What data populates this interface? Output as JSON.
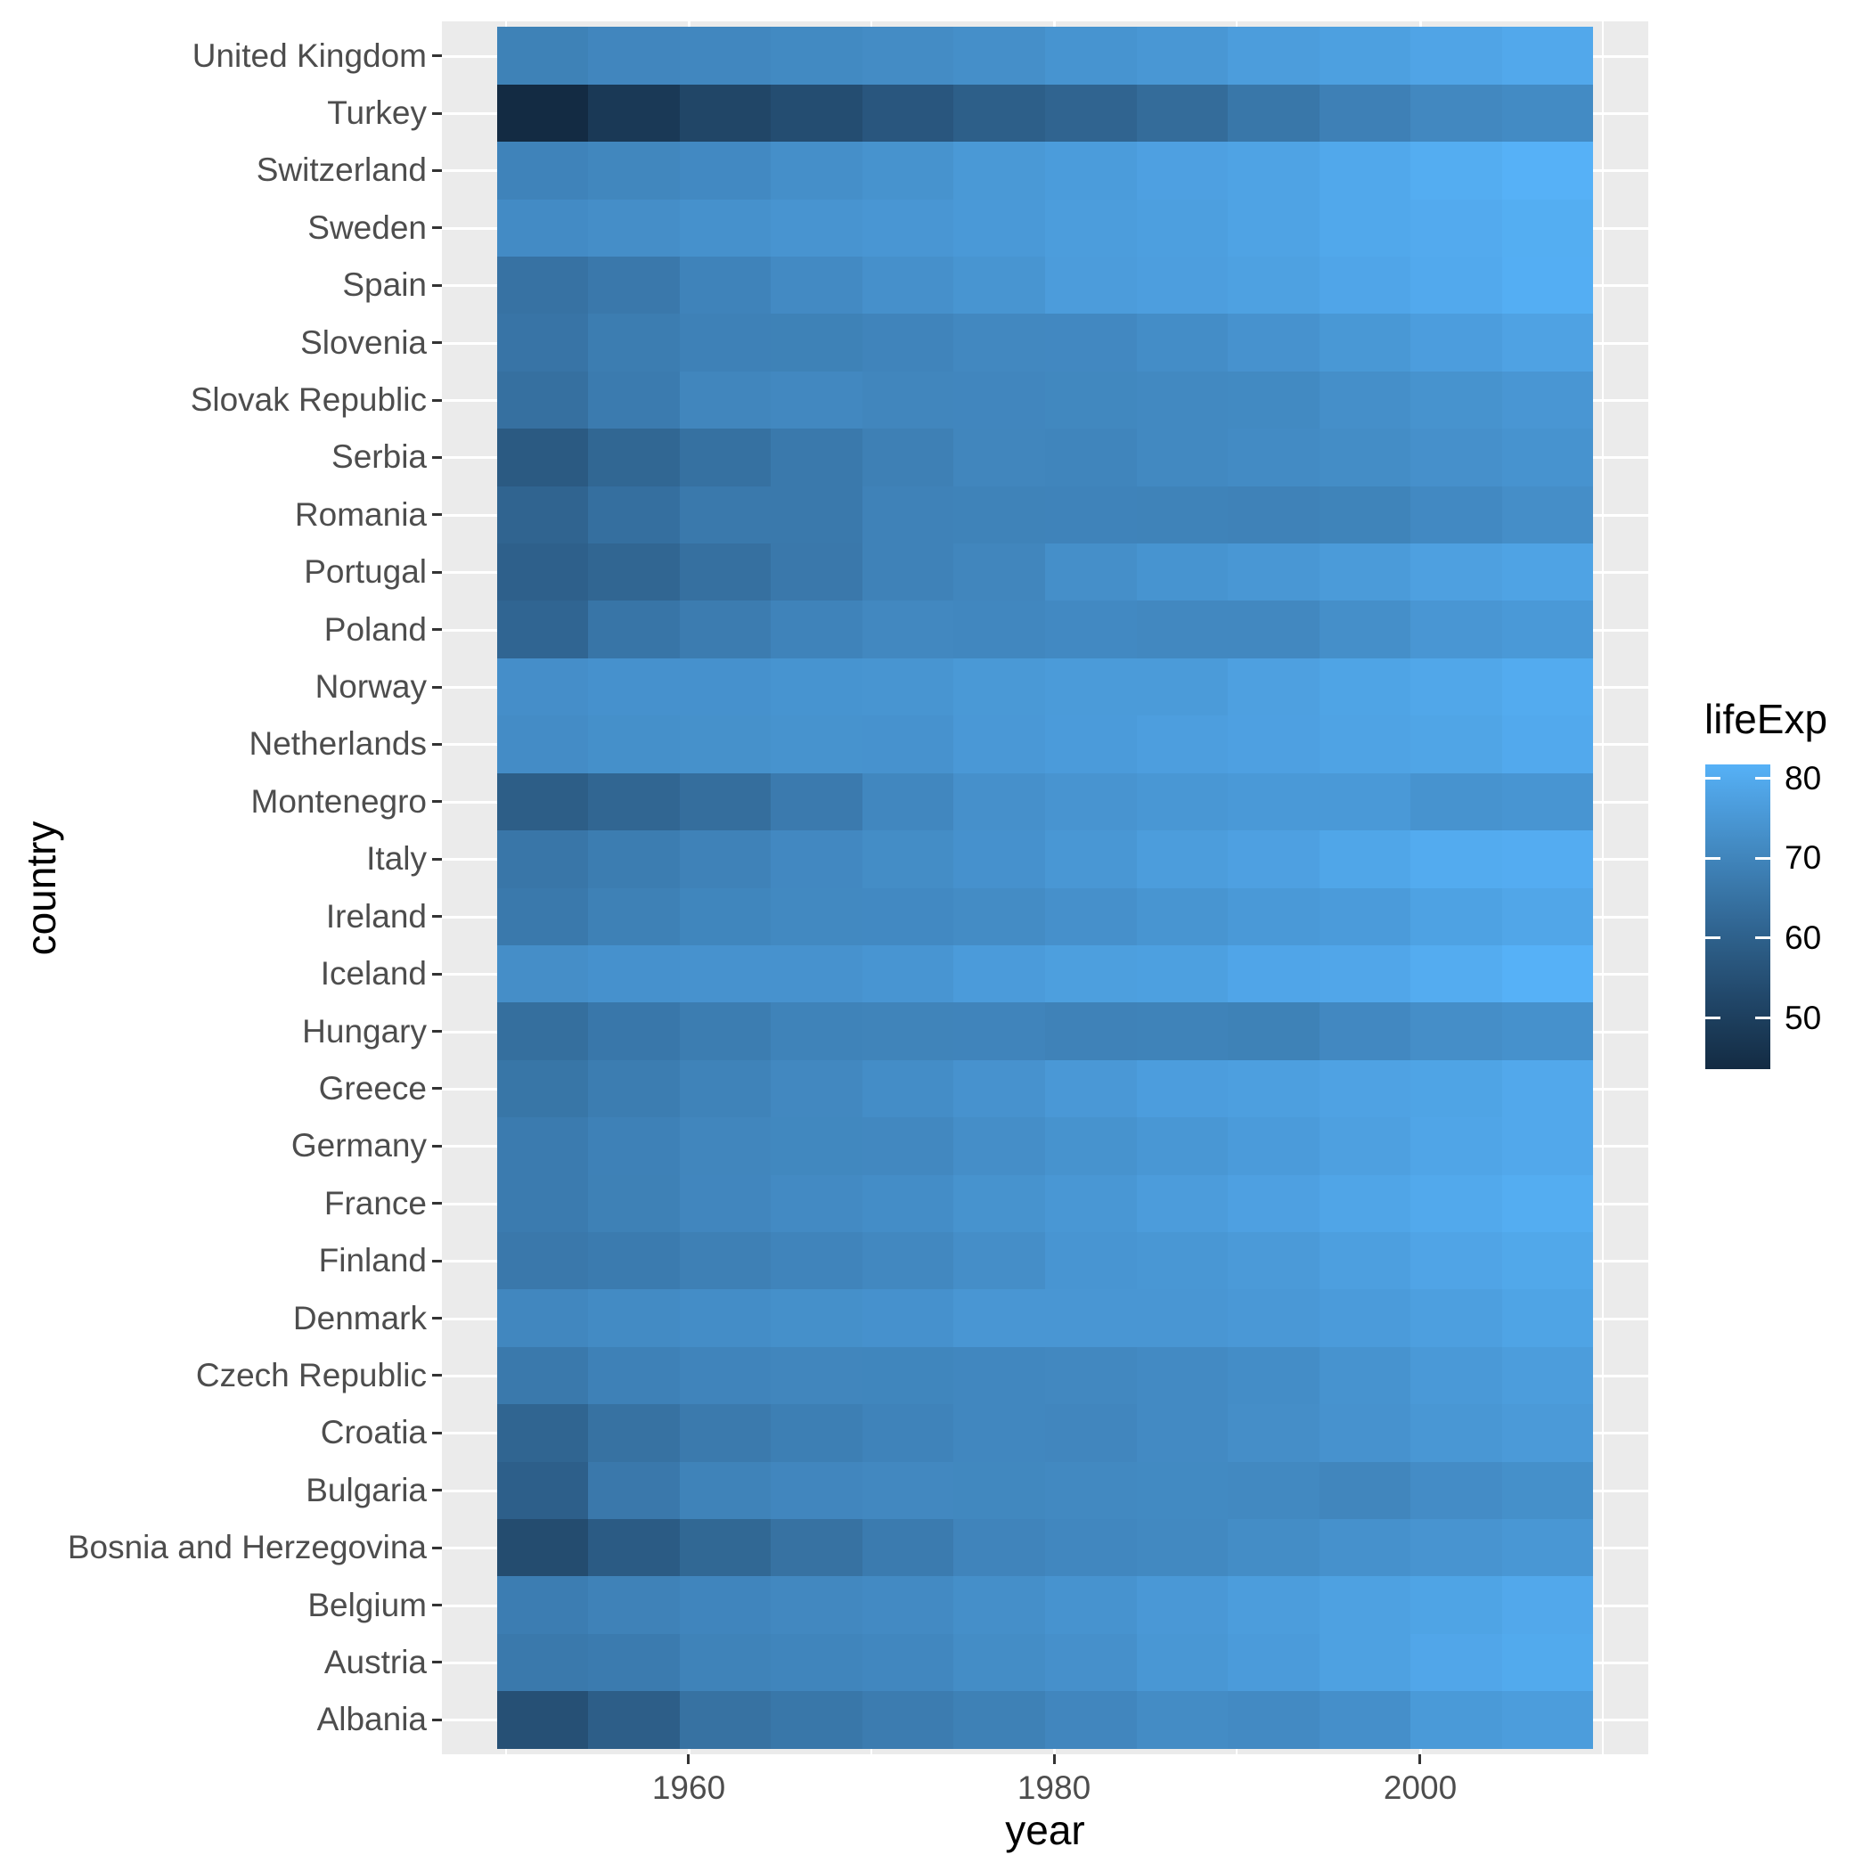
{
  "figure": {
    "background": "#FFFFFF",
    "panel_background": "#EBEBEB",
    "grid_color": "#FFFFFF",
    "axis_text_color": "#4D4D4D",
    "axis_tick_color": "#333333",
    "title_color": "#000000"
  },
  "axes": {
    "x_title": "year",
    "y_title": "country",
    "x_major_ticks": [
      1960,
      1980,
      2000
    ],
    "x_minor_gridlines": [
      1950,
      1970,
      1990,
      2010
    ]
  },
  "legend": {
    "title": "lifeExp",
    "ticks": [
      80,
      70,
      60,
      50
    ],
    "gradient_high": "#56B1F7",
    "gradient_low": "#132B43"
  },
  "chart_data": {
    "type": "heatmap",
    "title": "",
    "xlabel": "year",
    "ylabel": "country",
    "fill_label": "lifeExp",
    "x": [
      1952,
      1957,
      1962,
      1967,
      1972,
      1977,
      1982,
      1987,
      1992,
      1997,
      2002,
      2007
    ],
    "xlim": [
      1946.5,
      2012.5
    ],
    "tile_width_years": 5,
    "fill_limits": [
      43.585,
      81.757
    ],
    "categories_top_to_bottom": [
      "United Kingdom",
      "Turkey",
      "Switzerland",
      "Sweden",
      "Spain",
      "Slovenia",
      "Slovak Republic",
      "Serbia",
      "Romania",
      "Portugal",
      "Poland",
      "Norway",
      "Netherlands",
      "Montenegro",
      "Italy",
      "Ireland",
      "Iceland",
      "Hungary",
      "Greece",
      "Germany",
      "France",
      "Finland",
      "Denmark",
      "Czech Republic",
      "Croatia",
      "Bulgaria",
      "Bosnia and Herzegovina",
      "Belgium",
      "Austria",
      "Albania"
    ],
    "series": [
      {
        "name": "United Kingdom",
        "values": [
          69.18,
          70.42,
          70.76,
          71.36,
          72.01,
          72.76,
          74.04,
          75.007,
          76.42,
          77.218,
          78.471,
          79.425
        ]
      },
      {
        "name": "Turkey",
        "values": [
          43.585,
          48.079,
          52.098,
          54.336,
          57.005,
          59.507,
          61.036,
          63.108,
          66.146,
          68.835,
          70.845,
          71.777
        ]
      },
      {
        "name": "Switzerland",
        "values": [
          69.62,
          70.56,
          71.32,
          72.77,
          73.78,
          75.39,
          76.21,
          77.41,
          78.03,
          79.37,
          80.62,
          81.701
        ]
      },
      {
        "name": "Sweden",
        "values": [
          71.86,
          72.49,
          73.37,
          74.16,
          74.72,
          75.44,
          76.42,
          77.19,
          78.16,
          79.39,
          80.04,
          80.884
        ]
      },
      {
        "name": "Spain",
        "values": [
          64.94,
          66.66,
          69.69,
          71.44,
          73.06,
          74.39,
          76.3,
          76.9,
          77.57,
          78.77,
          79.78,
          80.941
        ]
      },
      {
        "name": "Slovenia",
        "values": [
          65.57,
          67.85,
          69.15,
          69.18,
          69.82,
          70.97,
          71.063,
          72.25,
          73.64,
          75.13,
          76.66,
          77.926
        ]
      },
      {
        "name": "Slovak Republic",
        "values": [
          64.36,
          67.45,
          70.33,
          70.98,
          70.35,
          70.45,
          70.8,
          71.08,
          71.38,
          72.71,
          73.8,
          74.663
        ]
      },
      {
        "name": "Serbia",
        "values": [
          57.996,
          61.685,
          64.531,
          66.914,
          68.7,
          70.3,
          70.162,
          71.218,
          71.659,
          72.232,
          73.213,
          74.002
        ]
      },
      {
        "name": "Romania",
        "values": [
          61.05,
          64.1,
          66.8,
          66.8,
          69.21,
          69.46,
          69.66,
          69.53,
          69.36,
          69.72,
          71.322,
          72.476
        ]
      },
      {
        "name": "Portugal",
        "values": [
          59.82,
          61.51,
          64.39,
          66.6,
          69.26,
          70.41,
          72.77,
          74.06,
          74.86,
          75.97,
          77.29,
          78.098
        ]
      },
      {
        "name": "Poland",
        "values": [
          61.31,
          65.77,
          67.64,
          69.61,
          70.85,
          70.67,
          71.32,
          70.98,
          70.99,
          72.75,
          74.67,
          75.563
        ]
      },
      {
        "name": "Norway",
        "values": [
          72.67,
          73.44,
          73.47,
          74.08,
          74.34,
          75.37,
          75.97,
          75.89,
          77.32,
          78.32,
          79.05,
          80.196
        ]
      },
      {
        "name": "Netherlands",
        "values": [
          72.13,
          72.99,
          73.23,
          73.82,
          73.75,
          75.24,
          76.05,
          76.83,
          77.42,
          78.03,
          78.53,
          79.762
        ]
      },
      {
        "name": "Montenegro",
        "values": [
          59.164,
          61.448,
          63.728,
          67.178,
          70.636,
          73.066,
          74.101,
          74.865,
          75.435,
          75.445,
          73.981,
          74.543
        ]
      },
      {
        "name": "Italy",
        "values": [
          65.94,
          67.81,
          69.24,
          71.06,
          72.19,
          73.48,
          74.98,
          76.42,
          77.44,
          78.82,
          80.24,
          80.546
        ]
      },
      {
        "name": "Ireland",
        "values": [
          66.91,
          68.9,
          70.29,
          71.08,
          71.28,
          72.03,
          73.1,
          74.36,
          75.467,
          76.122,
          77.783,
          78.885
        ]
      },
      {
        "name": "Iceland",
        "values": [
          72.49,
          73.47,
          73.68,
          73.73,
          74.46,
          76.11,
          76.99,
          77.23,
          78.77,
          78.95,
          80.5,
          81.757
        ]
      },
      {
        "name": "Hungary",
        "values": [
          64.03,
          66.41,
          67.96,
          69.5,
          69.76,
          69.95,
          69.39,
          69.58,
          69.17,
          71.04,
          72.59,
          73.338
        ]
      },
      {
        "name": "Greece",
        "values": [
          65.86,
          67.86,
          69.51,
          71.0,
          72.34,
          73.68,
          75.24,
          76.67,
          77.03,
          77.869,
          78.256,
          79.483
        ]
      },
      {
        "name": "Germany",
        "values": [
          67.5,
          69.1,
          70.3,
          70.8,
          71.0,
          72.5,
          73.8,
          74.847,
          76.07,
          77.34,
          78.67,
          79.406
        ]
      },
      {
        "name": "France",
        "values": [
          67.41,
          68.93,
          70.51,
          71.55,
          72.38,
          73.83,
          74.89,
          76.34,
          77.46,
          78.64,
          79.59,
          80.657
        ]
      },
      {
        "name": "Finland",
        "values": [
          66.55,
          67.49,
          68.75,
          69.83,
          70.87,
          72.52,
          74.55,
          74.83,
          75.7,
          77.13,
          78.37,
          79.313
        ]
      },
      {
        "name": "Denmark",
        "values": [
          70.78,
          71.81,
          72.35,
          72.96,
          73.47,
          74.69,
          74.63,
          74.8,
          75.33,
          76.11,
          77.18,
          78.332
        ]
      },
      {
        "name": "Czech Republic",
        "values": [
          66.87,
          69.03,
          69.9,
          70.38,
          70.29,
          70.71,
          70.96,
          71.58,
          72.4,
          74.01,
          75.51,
          76.486
        ]
      },
      {
        "name": "Croatia",
        "values": [
          61.21,
          64.77,
          67.13,
          68.5,
          69.61,
          70.64,
          70.46,
          71.52,
          72.527,
          73.68,
          74.876,
          75.748
        ]
      },
      {
        "name": "Bulgaria",
        "values": [
          59.6,
          66.61,
          69.51,
          70.42,
          70.9,
          70.81,
          71.08,
          71.34,
          71.19,
          70.32,
          72.14,
          73.005
        ]
      },
      {
        "name": "Bosnia and Herzegovina",
        "values": [
          53.82,
          58.45,
          61.93,
          64.79,
          67.45,
          69.86,
          70.69,
          71.14,
          72.178,
          73.244,
          74.09,
          74.852
        ]
      },
      {
        "name": "Belgium",
        "values": [
          68.0,
          69.24,
          70.25,
          70.94,
          71.44,
          72.8,
          73.93,
          75.35,
          76.46,
          77.53,
          78.32,
          79.441
        ]
      },
      {
        "name": "Austria",
        "values": [
          66.8,
          67.48,
          69.54,
          70.14,
          70.63,
          72.17,
          73.18,
          74.94,
          76.04,
          77.51,
          78.98,
          79.829
        ]
      },
      {
        "name": "Albania",
        "values": [
          55.23,
          59.28,
          64.82,
          66.22,
          67.69,
          68.93,
          70.42,
          72.0,
          71.581,
          72.95,
          75.651,
          76.423
        ]
      }
    ]
  }
}
